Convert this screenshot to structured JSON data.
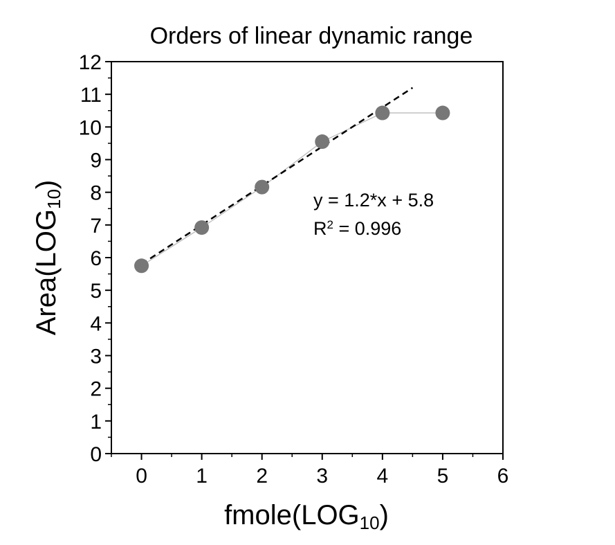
{
  "chart_data": {
    "type": "scatter",
    "title": "Orders of linear dynamic range",
    "xlabel": {
      "main": "fmole(LOG",
      "sub": "10",
      "close": ")"
    },
    "ylabel": {
      "main": "Area(LOG",
      "sub": "10",
      "close": ")"
    },
    "xlim": [
      -0.5,
      6
    ],
    "ylim": [
      0,
      12
    ],
    "xticks": [
      0,
      1,
      2,
      3,
      4,
      5,
      6
    ],
    "yticks": [
      0,
      1,
      2,
      3,
      4,
      5,
      6,
      7,
      8,
      9,
      10,
      11,
      12
    ],
    "grid": false,
    "series": [
      {
        "x": [
          0,
          1,
          2,
          3,
          4,
          5
        ],
        "y": [
          5.75,
          6.92,
          8.16,
          9.55,
          10.43,
          10.43
        ],
        "marker": "circle",
        "color": "#777777",
        "line_color": "#bbbbbb"
      }
    ],
    "fit": {
      "slope": 1.2,
      "intercept": 5.8,
      "x_range": [
        0,
        4.5
      ],
      "style": "dashed",
      "color": "#000000",
      "equation": "y = 1.2*x + 5.8",
      "r2_prefix": "R",
      "r2_sup": "2",
      "r2_value": " = 0.996"
    }
  }
}
